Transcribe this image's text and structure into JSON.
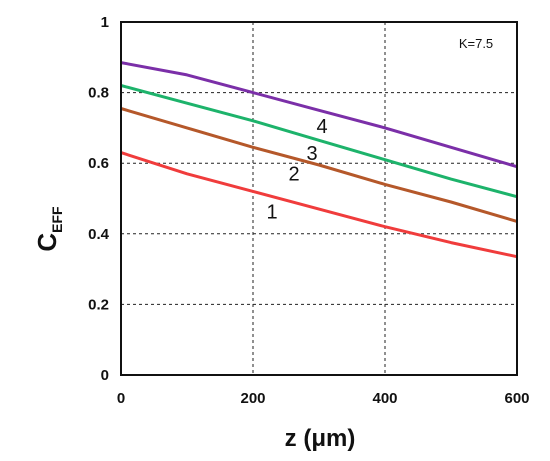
{
  "chart_data": {
    "type": "line",
    "xlabel": "z (μm)",
    "ylabel_main": "C",
    "ylabel_sub": "EFF",
    "annotation": "K=7.5",
    "xlim": [
      0,
      600
    ],
    "ylim": [
      0,
      1
    ],
    "x_ticks": [
      0,
      200,
      400,
      600
    ],
    "y_ticks": [
      0,
      0.2,
      0.4,
      0.6,
      0.8,
      1
    ],
    "x_tick_labels": [
      "0",
      "200",
      "400",
      "600"
    ],
    "y_tick_labels": [
      "0",
      "0.2",
      "0.4",
      "0.6",
      "0.8",
      "1"
    ],
    "grid": true,
    "series": [
      {
        "label": "1",
        "color": "#f03c3c",
        "x": [
          0,
          100,
          200,
          300,
          400,
          500,
          600
        ],
        "y": [
          0.63,
          0.57,
          0.52,
          0.47,
          0.42,
          0.375,
          0.335
        ]
      },
      {
        "label": "2",
        "color": "#b5582a",
        "x": [
          0,
          100,
          200,
          300,
          400,
          500,
          600
        ],
        "y": [
          0.755,
          0.7,
          0.645,
          0.595,
          0.54,
          0.49,
          0.435
        ]
      },
      {
        "label": "3",
        "color": "#1db36b",
        "x": [
          0,
          100,
          200,
          300,
          400,
          500,
          600
        ],
        "y": [
          0.82,
          0.77,
          0.72,
          0.665,
          0.61,
          0.555,
          0.505
        ]
      },
      {
        "label": "4",
        "color": "#7b2fa8",
        "x": [
          0,
          100,
          200,
          300,
          400,
          500,
          600
        ],
        "y": [
          0.885,
          0.85,
          0.8,
          0.75,
          0.7,
          0.645,
          0.59
        ]
      }
    ]
  }
}
